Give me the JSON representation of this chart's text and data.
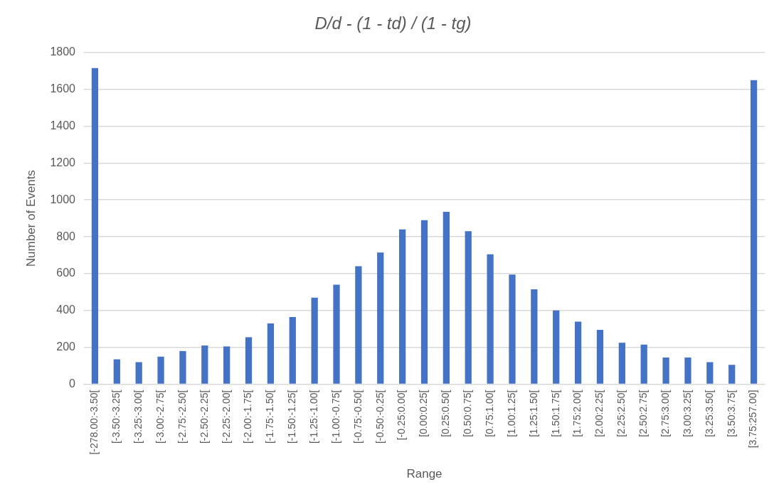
{
  "chart_data": {
    "type": "bar",
    "title": "D/d - (1 - td) / (1 - tg)",
    "xlabel": "Range",
    "ylabel": "Number of Events",
    "categories": [
      "[-278.00:-3.50[",
      "[-3.50:-3.25[",
      "[-3.25:-3.00[",
      "[-3.00:-2.75[",
      "[-2.75:-2.50[",
      "[-2.50:-2.25[",
      "[-2.25:-2.00[",
      "[-2.00:-1.75[",
      "[-1.75:-1.50[",
      "[-1.50:-1.25[",
      "[-1.25:-1.00[",
      "[-1.00:-0.75[",
      "[-0.75:-0.50[",
      "[-0.50:-0.25[",
      "[-0.25:0.00[",
      "[0.00:0.25[",
      "[0.25:0.50[",
      "[0.50:0.75[",
      "[0.75:1.00[",
      "[1.00:1.25[",
      "[1.25:1.50[",
      "[1.50:1.75[",
      "[1.75:2.00[",
      "[2.00:2.25[",
      "[2.25:2.50[",
      "[2.50:2.75[",
      "[2.75:3.00[",
      "[3.00:3.25[",
      "[3.25:3.50[",
      "[3.50:3.75[",
      "[3.75:257.00]"
    ],
    "values": [
      1715,
      135,
      120,
      150,
      180,
      210,
      205,
      255,
      330,
      365,
      470,
      540,
      640,
      715,
      840,
      890,
      935,
      830,
      705,
      595,
      515,
      400,
      340,
      295,
      225,
      215,
      145,
      145,
      120,
      105,
      1650
    ],
    "color": "#4472c4",
    "ylim": [
      0,
      1800
    ],
    "yticks": [
      0,
      200,
      400,
      600,
      800,
      1000,
      1200,
      1400,
      1600,
      1800
    ],
    "grid": "y",
    "legend": false
  }
}
